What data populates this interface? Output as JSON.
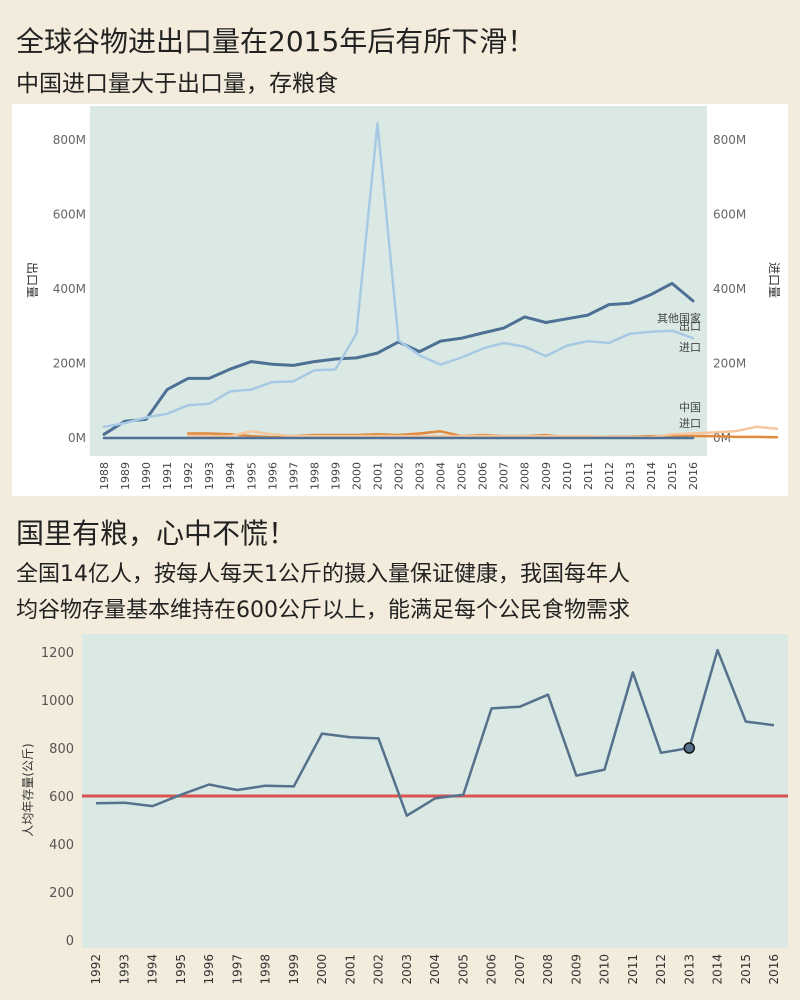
{
  "headline1": "全球谷物进出口量在2015年后有所下滑！",
  "subhead1": "中国进口量大于出口量，存粮食",
  "headline2": "国里有粮，心中不慌！",
  "subhead2_line1": "全国14亿人，按每人每天1公斤的摄入量保证健康，我国每年人",
  "subhead2_line2": "均谷物存量基本维持在600公斤以上，能满足每个公民食物需求",
  "colors": {
    "background": "#f3ecdc",
    "plot_bg": "#dbe9e5",
    "other_export": "#4e7094",
    "other_import": "#a8c9e3",
    "china_export": "#e08a3e",
    "china_import": "#f6c69c",
    "stock_line": "#56718c",
    "threshold": "#d9534f"
  },
  "chart_data": [
    {
      "type": "line",
      "ylabel_left": "出口量",
      "ylabel_right": "进口量",
      "ylim": [
        0,
        880
      ],
      "y_ticks": [
        0,
        200,
        400,
        600,
        800
      ],
      "y_tick_labels": [
        "0M",
        "200M",
        "400M",
        "600M",
        "800M"
      ],
      "x": [
        1988,
        1989,
        1990,
        1991,
        1992,
        1993,
        1994,
        1995,
        1996,
        1997,
        1998,
        1999,
        2000,
        2001,
        2002,
        2003,
        2004,
        2005,
        2006,
        2007,
        2008,
        2009,
        2010,
        2011,
        2012,
        2013,
        2014,
        2015,
        2016
      ],
      "series": [
        {
          "key": "other_export",
          "color": "#4e7094",
          "values": [
            10,
            45,
            50,
            130,
            160,
            160,
            185,
            205,
            198,
            195,
            205,
            212,
            215,
            228,
            258,
            232,
            260,
            268,
            282,
            295,
            325,
            310,
            320,
            330,
            358,
            362,
            385,
            415,
            368
          ]
        },
        {
          "key": "other_import",
          "color": "#a8c9e3",
          "values": [
            30,
            40,
            55,
            65,
            88,
            92,
            125,
            130,
            150,
            152,
            182,
            184,
            280,
            845,
            262,
            222,
            197,
            216,
            240,
            255,
            245,
            220,
            248,
            260,
            255,
            280,
            285,
            288,
            268
          ]
        },
        {
          "key": "china_export",
          "color": "#e08a3e",
          "start": 1992,
          "values": [
            12,
            12,
            10,
            5,
            2,
            5,
            8,
            8,
            8,
            10,
            8,
            12,
            18,
            5,
            8,
            5,
            5,
            8,
            2,
            2,
            3,
            3,
            5,
            5,
            5,
            5,
            3,
            3,
            2
          ]
        },
        {
          "key": "china_import",
          "color": "#f6c69c",
          "start": 1992,
          "values": [
            5,
            5,
            5,
            18,
            10,
            5,
            5,
            5,
            5,
            5,
            5,
            5,
            5,
            5,
            5,
            5,
            5,
            5,
            5,
            5,
            2,
            2,
            2,
            10,
            12,
            15,
            18,
            30,
            25
          ]
        },
        {
          "key": "baseline",
          "color": "#4e7094",
          "values": [
            0,
            0,
            0,
            0,
            0,
            0,
            0,
            0,
            0,
            0,
            0,
            0,
            0,
            0,
            0,
            0,
            0,
            0,
            0,
            0,
            0,
            0,
            0,
            0,
            0,
            0,
            0,
            0,
            0
          ]
        }
      ],
      "annotations": [
        {
          "text": "其他国家",
          "x": 2016,
          "y": 312
        },
        {
          "text": "出口",
          "x": 2016,
          "y": 290
        },
        {
          "text": "进口",
          "x": 2016,
          "y": 233
        },
        {
          "text": "中国",
          "x": 2016,
          "y": 72
        },
        {
          "text": "进口",
          "x": 2016,
          "y": 30
        }
      ]
    },
    {
      "type": "line",
      "ylabel": "人均年存量(公斤)",
      "ylim": [
        0,
        1280
      ],
      "y_ticks": [
        0,
        200,
        400,
        600,
        800,
        1000,
        1200
      ],
      "x": [
        1992,
        1993,
        1994,
        1995,
        1996,
        1997,
        1998,
        1999,
        2000,
        2001,
        2002,
        2003,
        2004,
        2005,
        2006,
        2007,
        2008,
        2009,
        2010,
        2011,
        2012,
        2013,
        2014,
        2015,
        2016
      ],
      "values": [
        570,
        572,
        558,
        605,
        648,
        625,
        643,
        640,
        860,
        845,
        840,
        518,
        590,
        605,
        965,
        972,
        1022,
        685,
        710,
        1115,
        780,
        800,
        1208,
        910,
        895
      ],
      "threshold": 600,
      "highlight_year": 2013
    }
  ]
}
